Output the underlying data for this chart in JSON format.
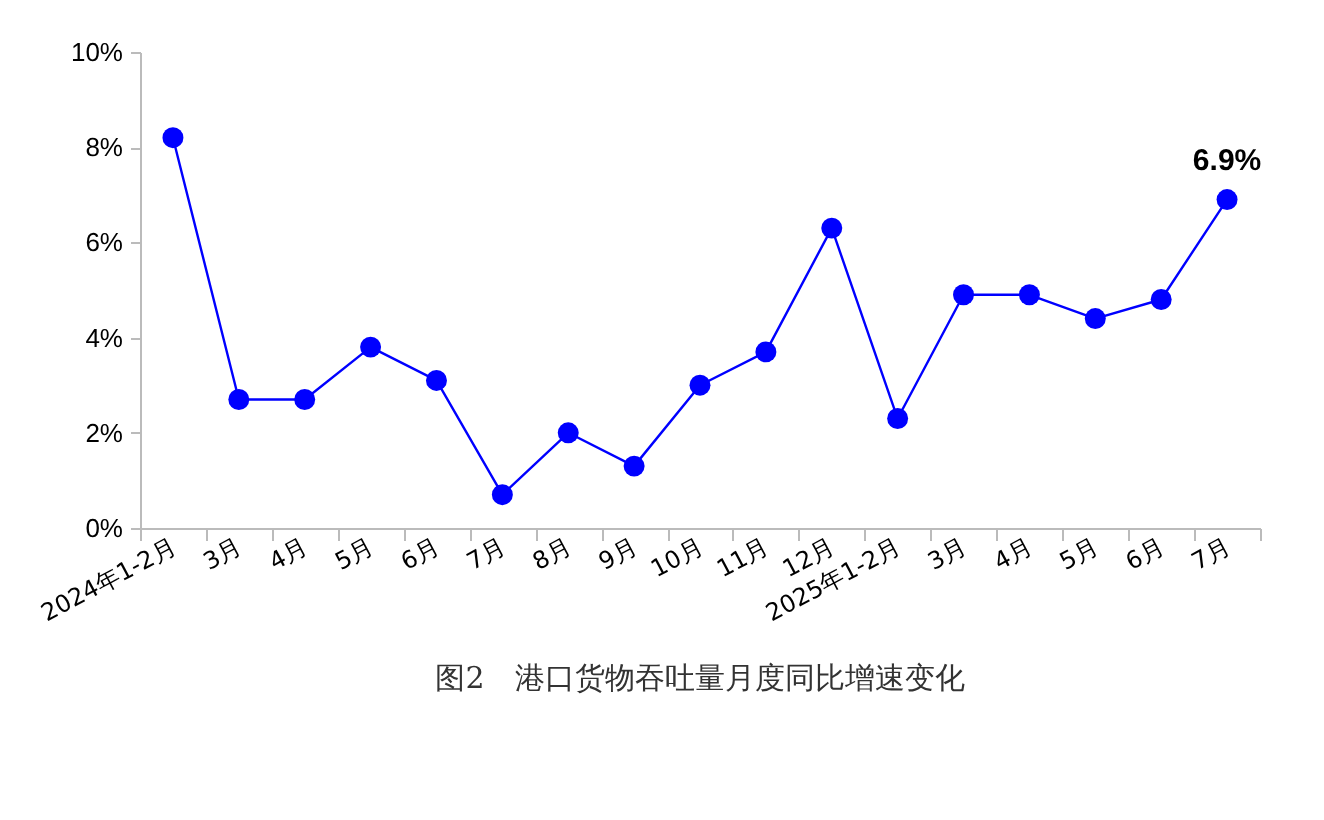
{
  "chart_data": {
    "type": "line",
    "title": "图2　港口货物吞吐量月度同比增速变化",
    "categories": [
      "2024年1-2月",
      "3月",
      "4月",
      "5月",
      "6月",
      "7月",
      "8月",
      "9月",
      "10月",
      "11月",
      "12月",
      "2025年1-2月",
      "3月",
      "4月",
      "5月",
      "6月",
      "7月"
    ],
    "series": [
      {
        "color": "#0000ff",
        "values": [
          8.2,
          2.7,
          2.7,
          3.8,
          3.1,
          0.7,
          2.0,
          1.3,
          3.0,
          3.7,
          6.3,
          2.3,
          4.9,
          4.9,
          4.4,
          4.8,
          6.9
        ],
        "value_labels": [
          null,
          null,
          null,
          null,
          null,
          null,
          null,
          null,
          null,
          null,
          null,
          null,
          null,
          null,
          null,
          null,
          "6.9%"
        ]
      }
    ],
    "ylim": [
      0,
      10
    ],
    "yticks": [
      {
        "value": 0,
        "label": "0%"
      },
      {
        "value": 2,
        "label": "2%"
      },
      {
        "value": 4,
        "label": "4%"
      },
      {
        "value": 6,
        "label": "6%"
      },
      {
        "value": 8,
        "label": "8%"
      },
      {
        "value": 10,
        "label": "10%"
      }
    ],
    "grid": false,
    "marker": "circle",
    "line_style": "solid"
  }
}
